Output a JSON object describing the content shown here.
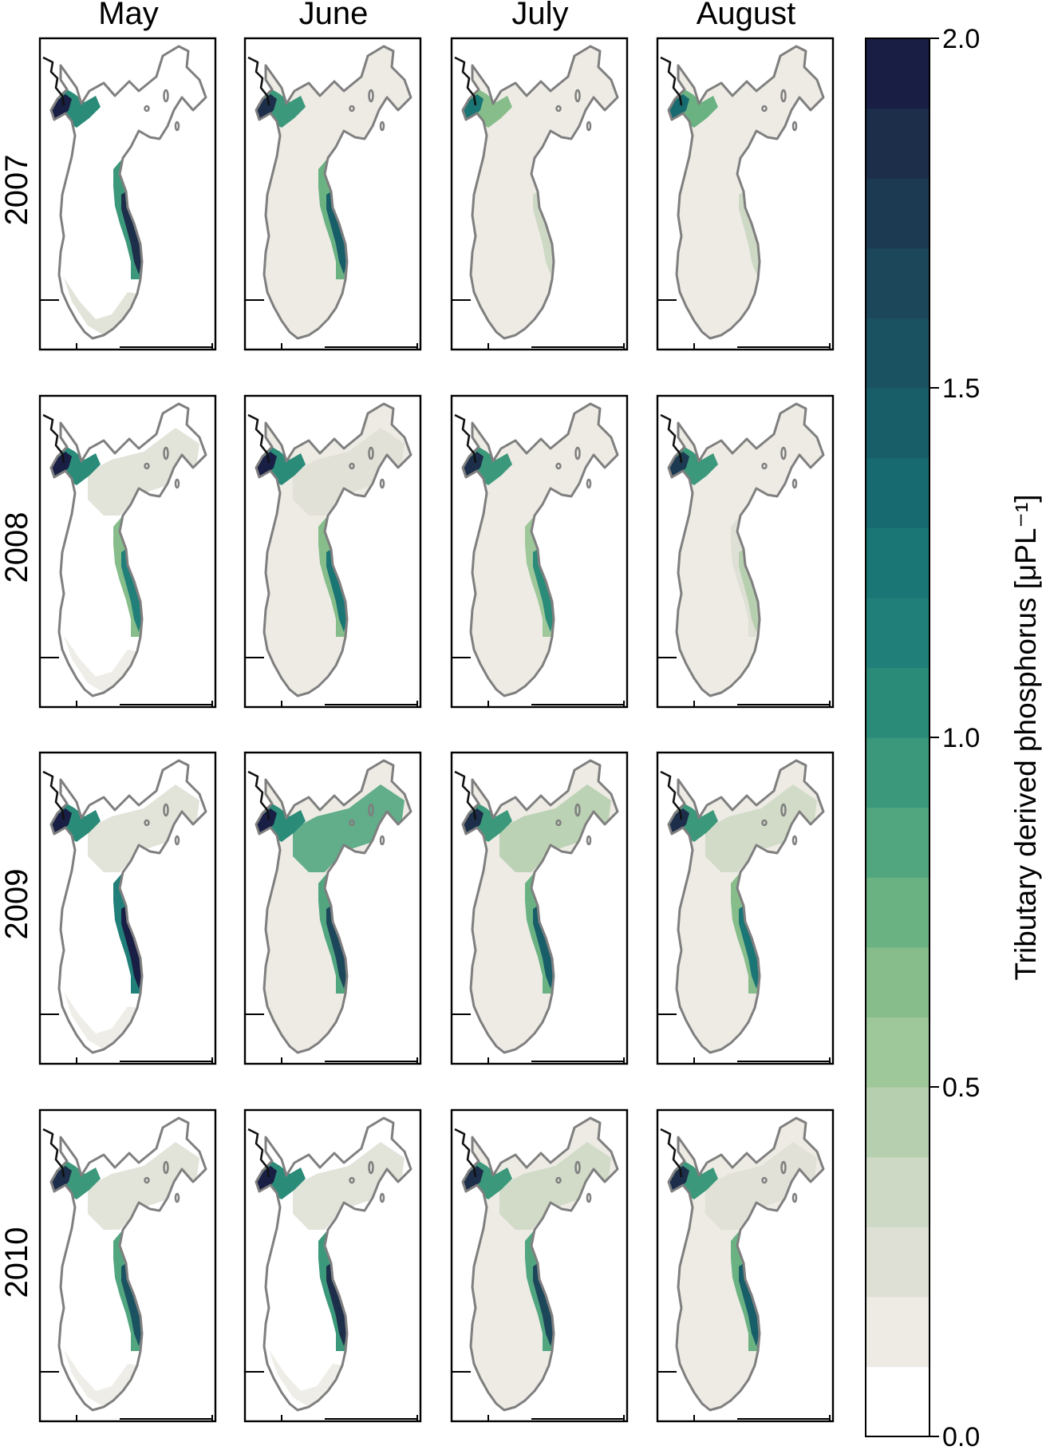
{
  "months": [
    "May",
    "June",
    "July",
    "August"
  ],
  "years": [
    "2007",
    "2008",
    "2009",
    "2010"
  ],
  "colorbar": {
    "label": "Tributary derived phosphorus [μPL⁻¹]",
    "min": 0.0,
    "max": 2.0,
    "ticks": [
      {
        "value": 0.0,
        "label": "0.0"
      },
      {
        "value": 0.5,
        "label": "0.5"
      },
      {
        "value": 1.0,
        "label": "1.0"
      },
      {
        "value": 1.5,
        "label": "1.5"
      },
      {
        "value": 2.0,
        "label": "2.0"
      }
    ],
    "levels": 20,
    "colors": [
      "#ffffff",
      "#edebe4",
      "#dfe0d5",
      "#cdd9c4",
      "#b6cfae",
      "#9ec79a",
      "#86bd8a",
      "#6bb283",
      "#52a67f",
      "#3c987b",
      "#2b8b79",
      "#208079",
      "#1a7575",
      "#176a70",
      "#185e69",
      "#1a5262",
      "#1c465a",
      "#1c3a52",
      "#1c2e4a",
      "#181e44"
    ],
    "color_accent": "#181e44"
  },
  "map_colors": {
    "shoreline": "#7f7f7f",
    "river": "#111111",
    "frame": "#000000"
  },
  "panels": [
    {
      "year": "2007",
      "month": "May",
      "bay": 1.9,
      "east": 1.8,
      "north": 0.0,
      "central": 0.0,
      "south": 0.2
    },
    {
      "year": "2007",
      "month": "June",
      "bay": 1.8,
      "east": 1.4,
      "north": 0.1,
      "central": 0.1,
      "south": 0.1
    },
    {
      "year": "2007",
      "month": "July",
      "bay": 1.2,
      "east": 0.3,
      "north": 0.1,
      "central": 0.1,
      "south": 0.1
    },
    {
      "year": "2007",
      "month": "August",
      "bay": 1.3,
      "east": 0.3,
      "north": 0.1,
      "central": 0.1,
      "south": 0.1
    },
    {
      "year": "2008",
      "month": "May",
      "bay": 1.9,
      "east": 1.1,
      "north": 0.2,
      "central": 0.0,
      "south": 0.1
    },
    {
      "year": "2008",
      "month": "June",
      "bay": 1.9,
      "east": 1.2,
      "north": 0.2,
      "central": 0.1,
      "south": 0.1
    },
    {
      "year": "2008",
      "month": "July",
      "bay": 1.8,
      "east": 1.0,
      "north": 0.1,
      "central": 0.1,
      "south": 0.1
    },
    {
      "year": "2008",
      "month": "August",
      "bay": 1.7,
      "east": 0.4,
      "north": 0.1,
      "central": 0.1,
      "south": 0.1
    },
    {
      "year": "2009",
      "month": "May",
      "bay": 1.9,
      "east": 2.0,
      "north": 0.2,
      "central": 0.0,
      "south": 0.1
    },
    {
      "year": "2009",
      "month": "June",
      "bay": 1.9,
      "east": 1.6,
      "north": 0.8,
      "central": 0.1,
      "south": 0.1
    },
    {
      "year": "2009",
      "month": "July",
      "bay": 1.8,
      "east": 1.4,
      "north": 0.4,
      "central": 0.1,
      "south": 0.1
    },
    {
      "year": "2009",
      "month": "August",
      "bay": 1.8,
      "east": 1.2,
      "north": 0.3,
      "central": 0.1,
      "south": 0.1
    },
    {
      "year": "2010",
      "month": "May",
      "bay": 1.8,
      "east": 1.5,
      "north": 0.2,
      "central": 0.0,
      "south": 0.1
    },
    {
      "year": "2010",
      "month": "June",
      "bay": 1.9,
      "east": 1.8,
      "north": 0.2,
      "central": 0.0,
      "south": 0.1
    },
    {
      "year": "2010",
      "month": "July",
      "bay": 1.8,
      "east": 1.6,
      "north": 0.3,
      "central": 0.1,
      "south": 0.1
    },
    {
      "year": "2010",
      "month": "August",
      "bay": 1.8,
      "east": 1.4,
      "north": 0.2,
      "central": 0.1,
      "south": 0.1
    }
  ]
}
